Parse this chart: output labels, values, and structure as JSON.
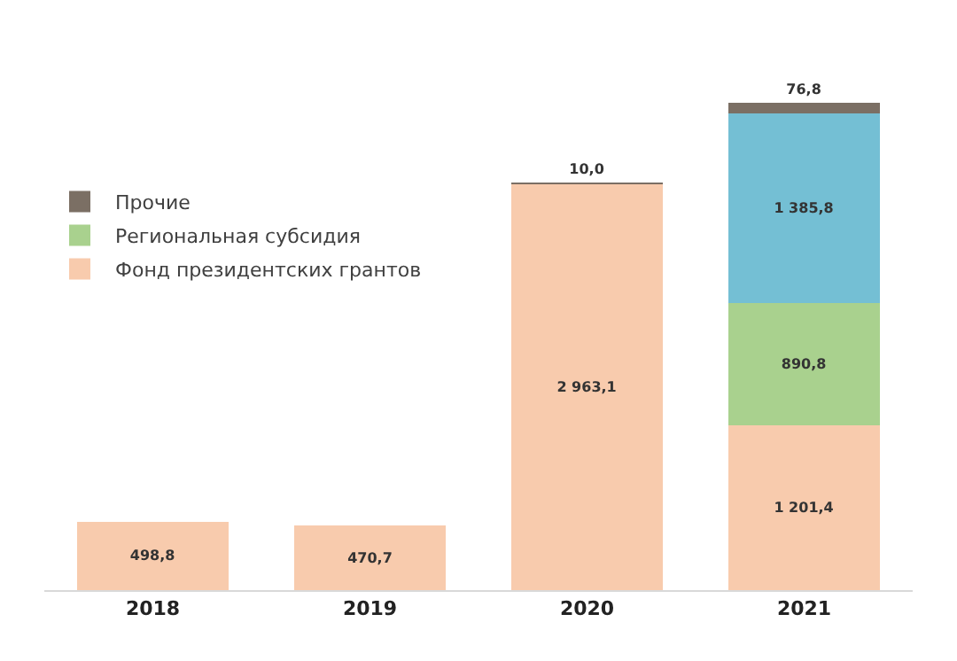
{
  "chart_data": {
    "type": "bar",
    "stacked": true,
    "categories": [
      "2018",
      "2019",
      "2020",
      "2021"
    ],
    "series": [
      {
        "name": "Фонд президентских грантов",
        "color": "#f8cbad",
        "values": [
          498.8,
          470.7,
          2963.1,
          1201.4
        ],
        "value_labels": [
          "498,8",
          "470,7",
          "2 963,1",
          "1 201,4"
        ]
      },
      {
        "name": "Региональная субсидия",
        "color": "#a9d18e",
        "values": [
          null,
          null,
          null,
          890.8
        ],
        "value_labels": [
          null,
          null,
          null,
          "890,8"
        ]
      },
      {
        "color": "#74bfd4",
        "values": [
          null,
          null,
          null,
          1385.8
        ],
        "value_labels": [
          null,
          null,
          null,
          "1 385,8"
        ]
      },
      {
        "name": "Прочие",
        "color": "#7b6f64",
        "values": [
          null,
          null,
          10.0,
          76.8
        ],
        "value_labels": [
          null,
          null,
          "10,0",
          "76,8"
        ]
      }
    ],
    "legend": "left"
  }
}
